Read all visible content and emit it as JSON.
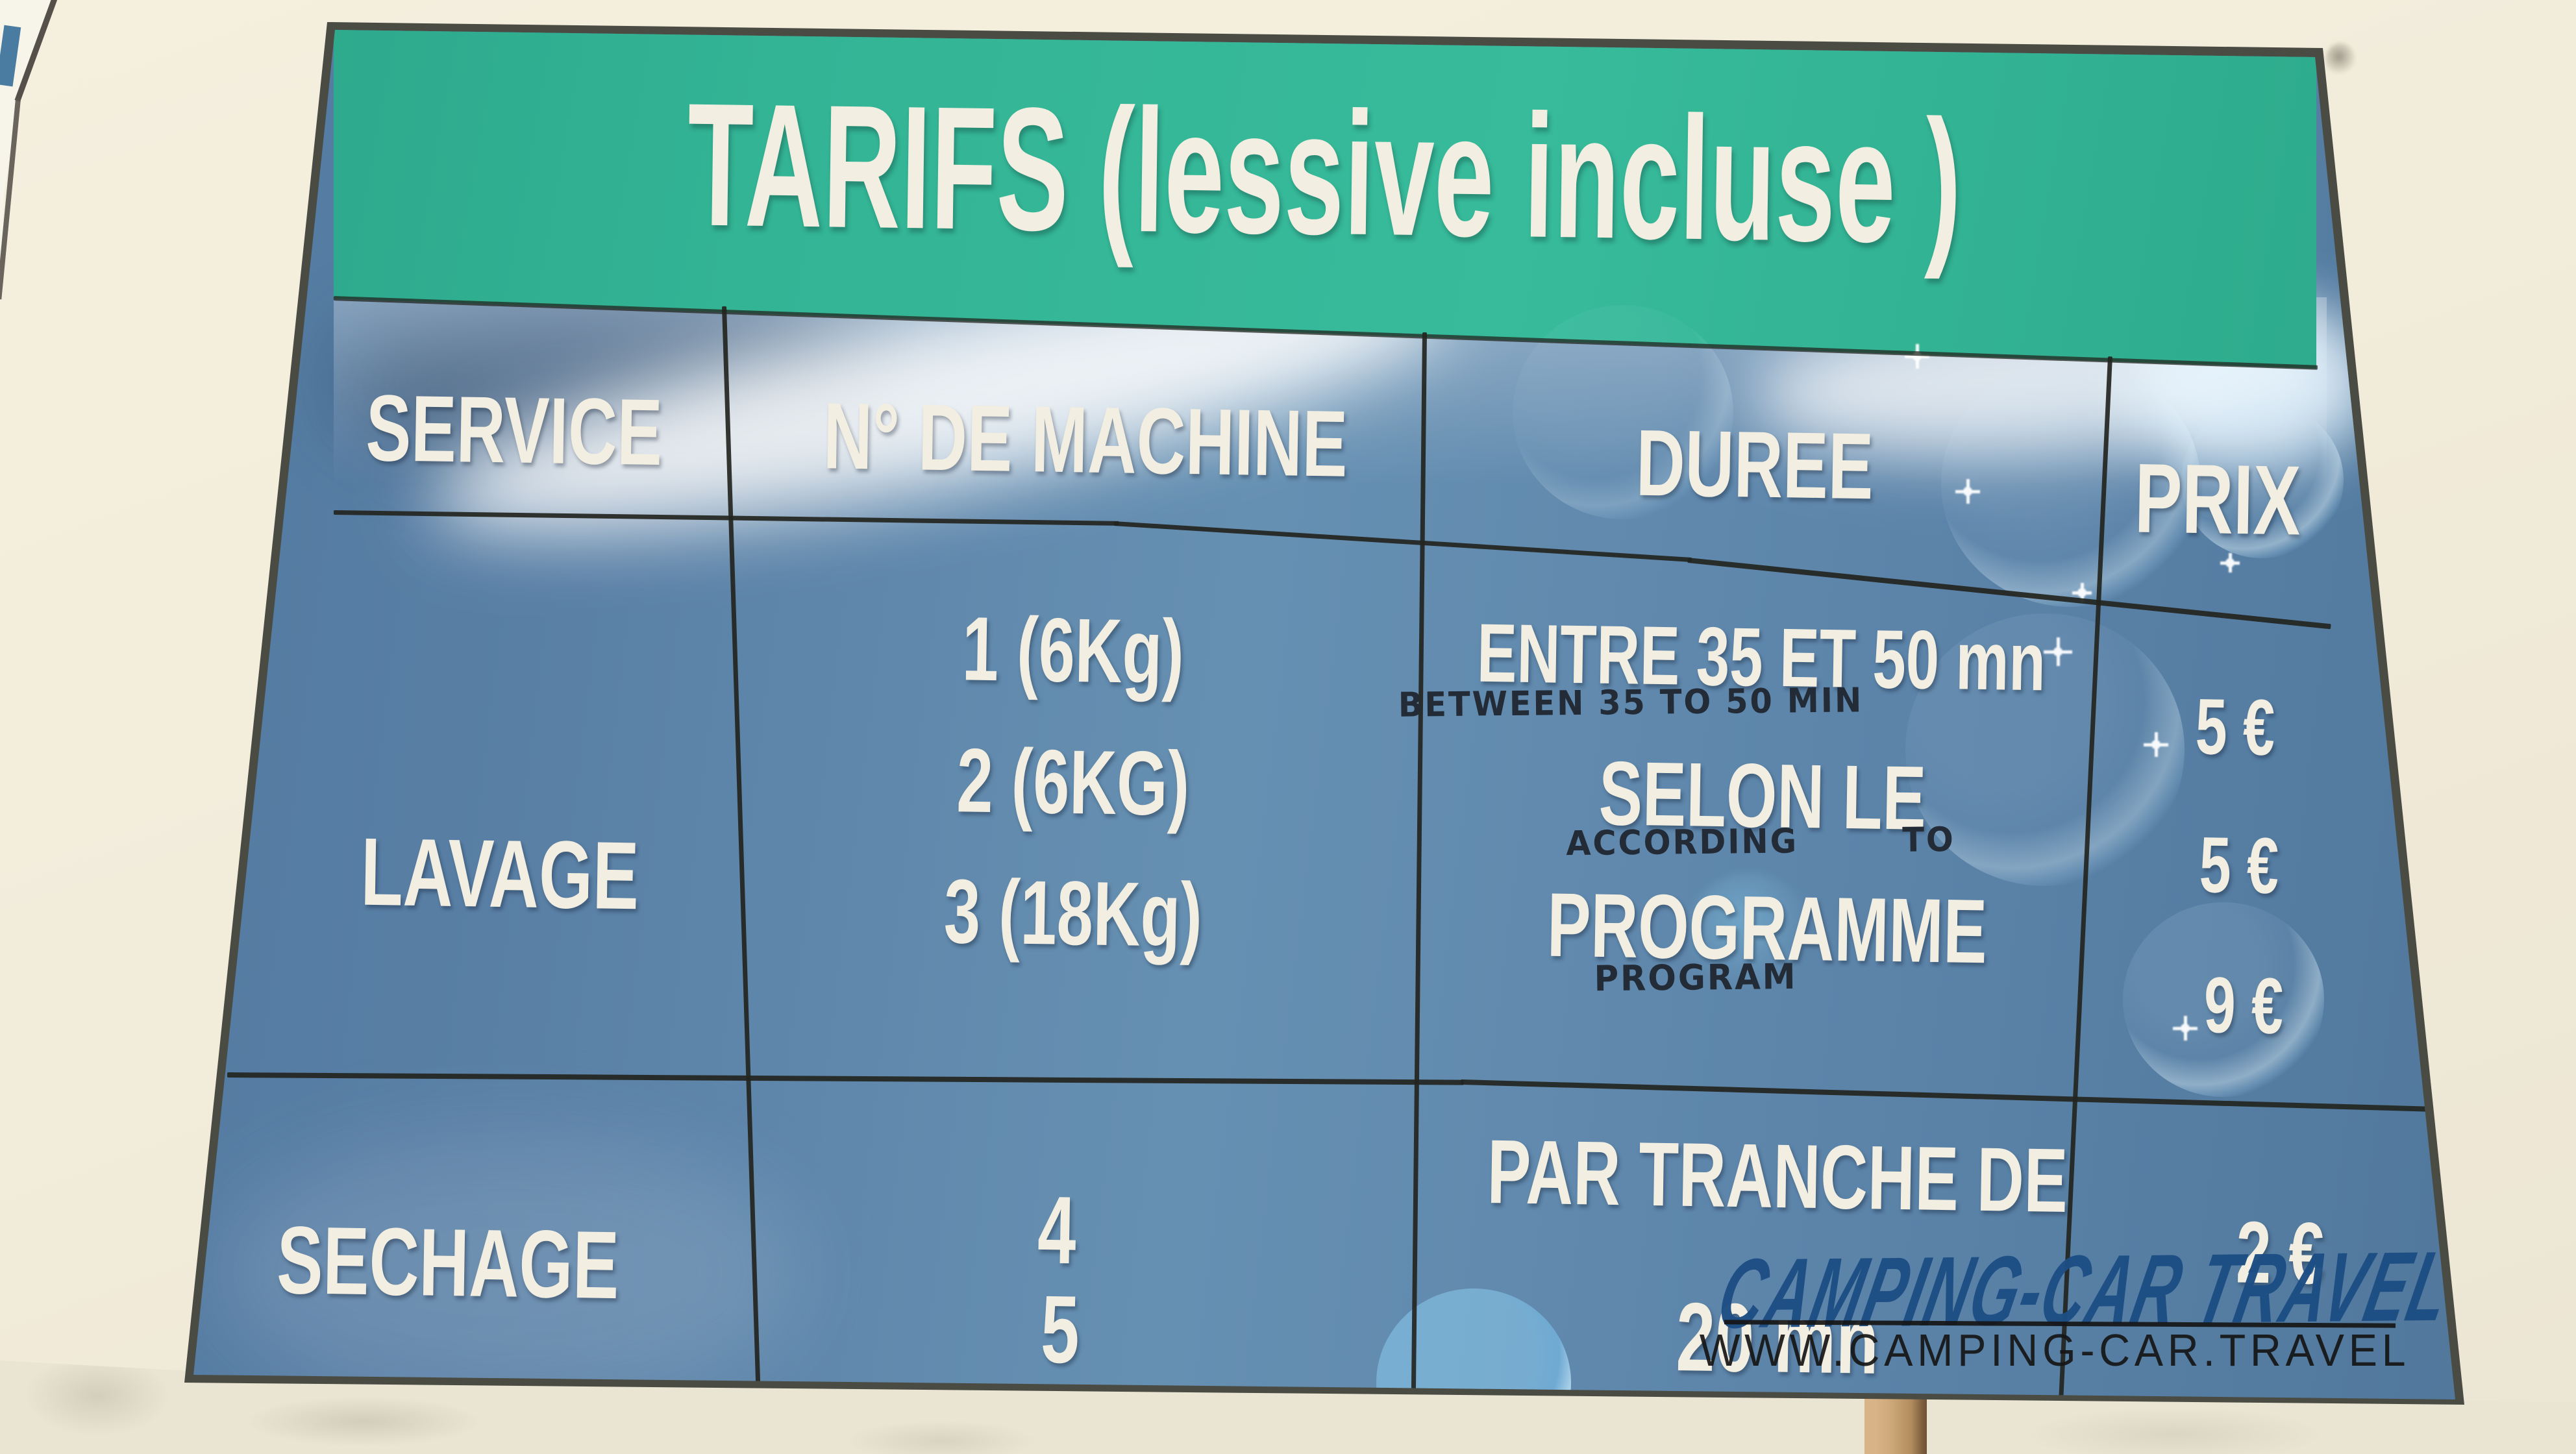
{
  "sign": {
    "title": "TARIFS (lessive incluse )",
    "columns": [
      "SERVICE",
      "N° DE MACHINE",
      "DUREE",
      "PRIX"
    ],
    "lavage": {
      "service": "LAVAGE",
      "machines": [
        "1 (6Kg)",
        "2 (6KG)",
        "3 (18Kg)"
      ],
      "durations": [
        "ENTRE 35 ET 50 mn",
        "SELON LE",
        "PROGRAMME"
      ],
      "annotations": [
        "BETWEEN 35 TO 50 MIN",
        "ACCORDING        TO",
        "PROGRAM"
      ],
      "prices": [
        "5 €",
        "5 €",
        "9 €"
      ]
    },
    "sechage": {
      "service": "SECHAGE",
      "machines": [
        "4",
        "5"
      ],
      "durations": [
        "PAR TRANCHE DE",
        "20 mn"
      ],
      "prices": [
        "2 €"
      ]
    }
  },
  "watermark": {
    "brand": "CAMPING-CAR TRAVEL",
    "url": "WWW.CAMPING-CAR.TRAVEL"
  },
  "colors": {
    "header_green": "#31b293",
    "panel_blue": "#5d85aa",
    "text_white": "#f2eee1",
    "handwriting_ink": "#222b36",
    "watermark_blue": "#1d4e84",
    "wall_cream": "#f2ecdb"
  }
}
